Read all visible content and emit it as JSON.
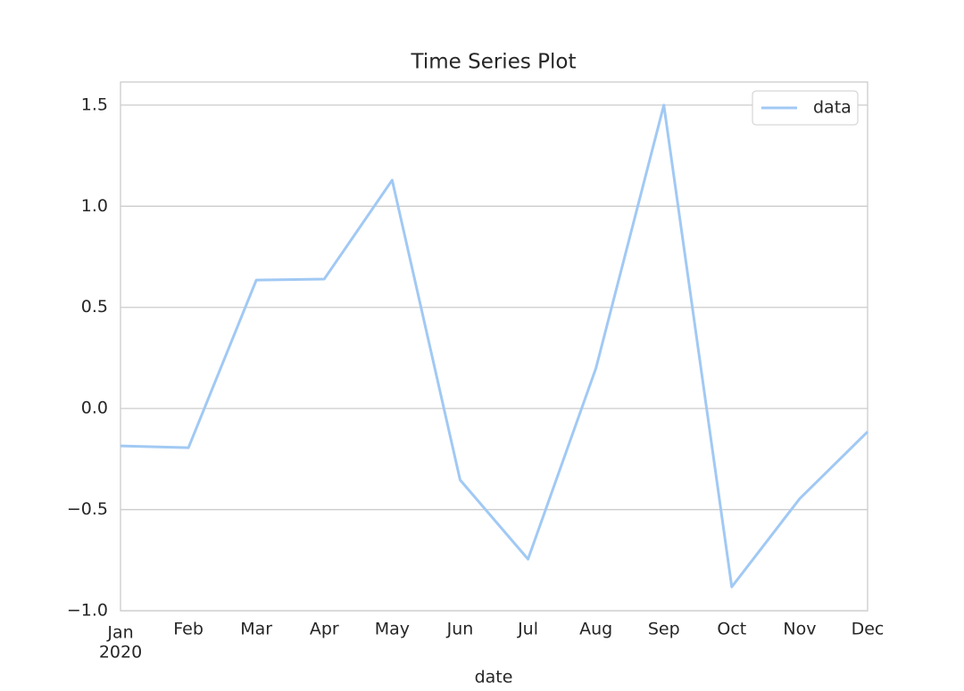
{
  "chart_data": {
    "type": "line",
    "title": "Time Series Plot",
    "x_label": "date",
    "categories": [
      "Jan",
      "Feb",
      "Mar",
      "Apr",
      "May",
      "Jun",
      "Jul",
      "Aug",
      "Sep",
      "Oct",
      "Nov",
      "Dec"
    ],
    "x_year": "2020",
    "series": [
      {
        "name": "data",
        "color": "#a1c9f4",
        "values": [
          -0.185,
          -0.194,
          0.635,
          0.64,
          1.129,
          -0.353,
          -0.745,
          0.199,
          1.5,
          -0.882,
          -0.446,
          -0.115
        ]
      }
    ],
    "ylim": [
      -1.0,
      1.614
    ],
    "yticks": [
      {
        "value": -1.0,
        "label": "−1.0"
      },
      {
        "value": -0.5,
        "label": "−0.5"
      },
      {
        "value": 0.0,
        "label": "0.0"
      },
      {
        "value": 0.5,
        "label": "0.5"
      },
      {
        "value": 1.0,
        "label": "1.0"
      },
      {
        "value": 1.5,
        "label": "1.5"
      }
    ],
    "grid": true,
    "legend": "upper right"
  }
}
